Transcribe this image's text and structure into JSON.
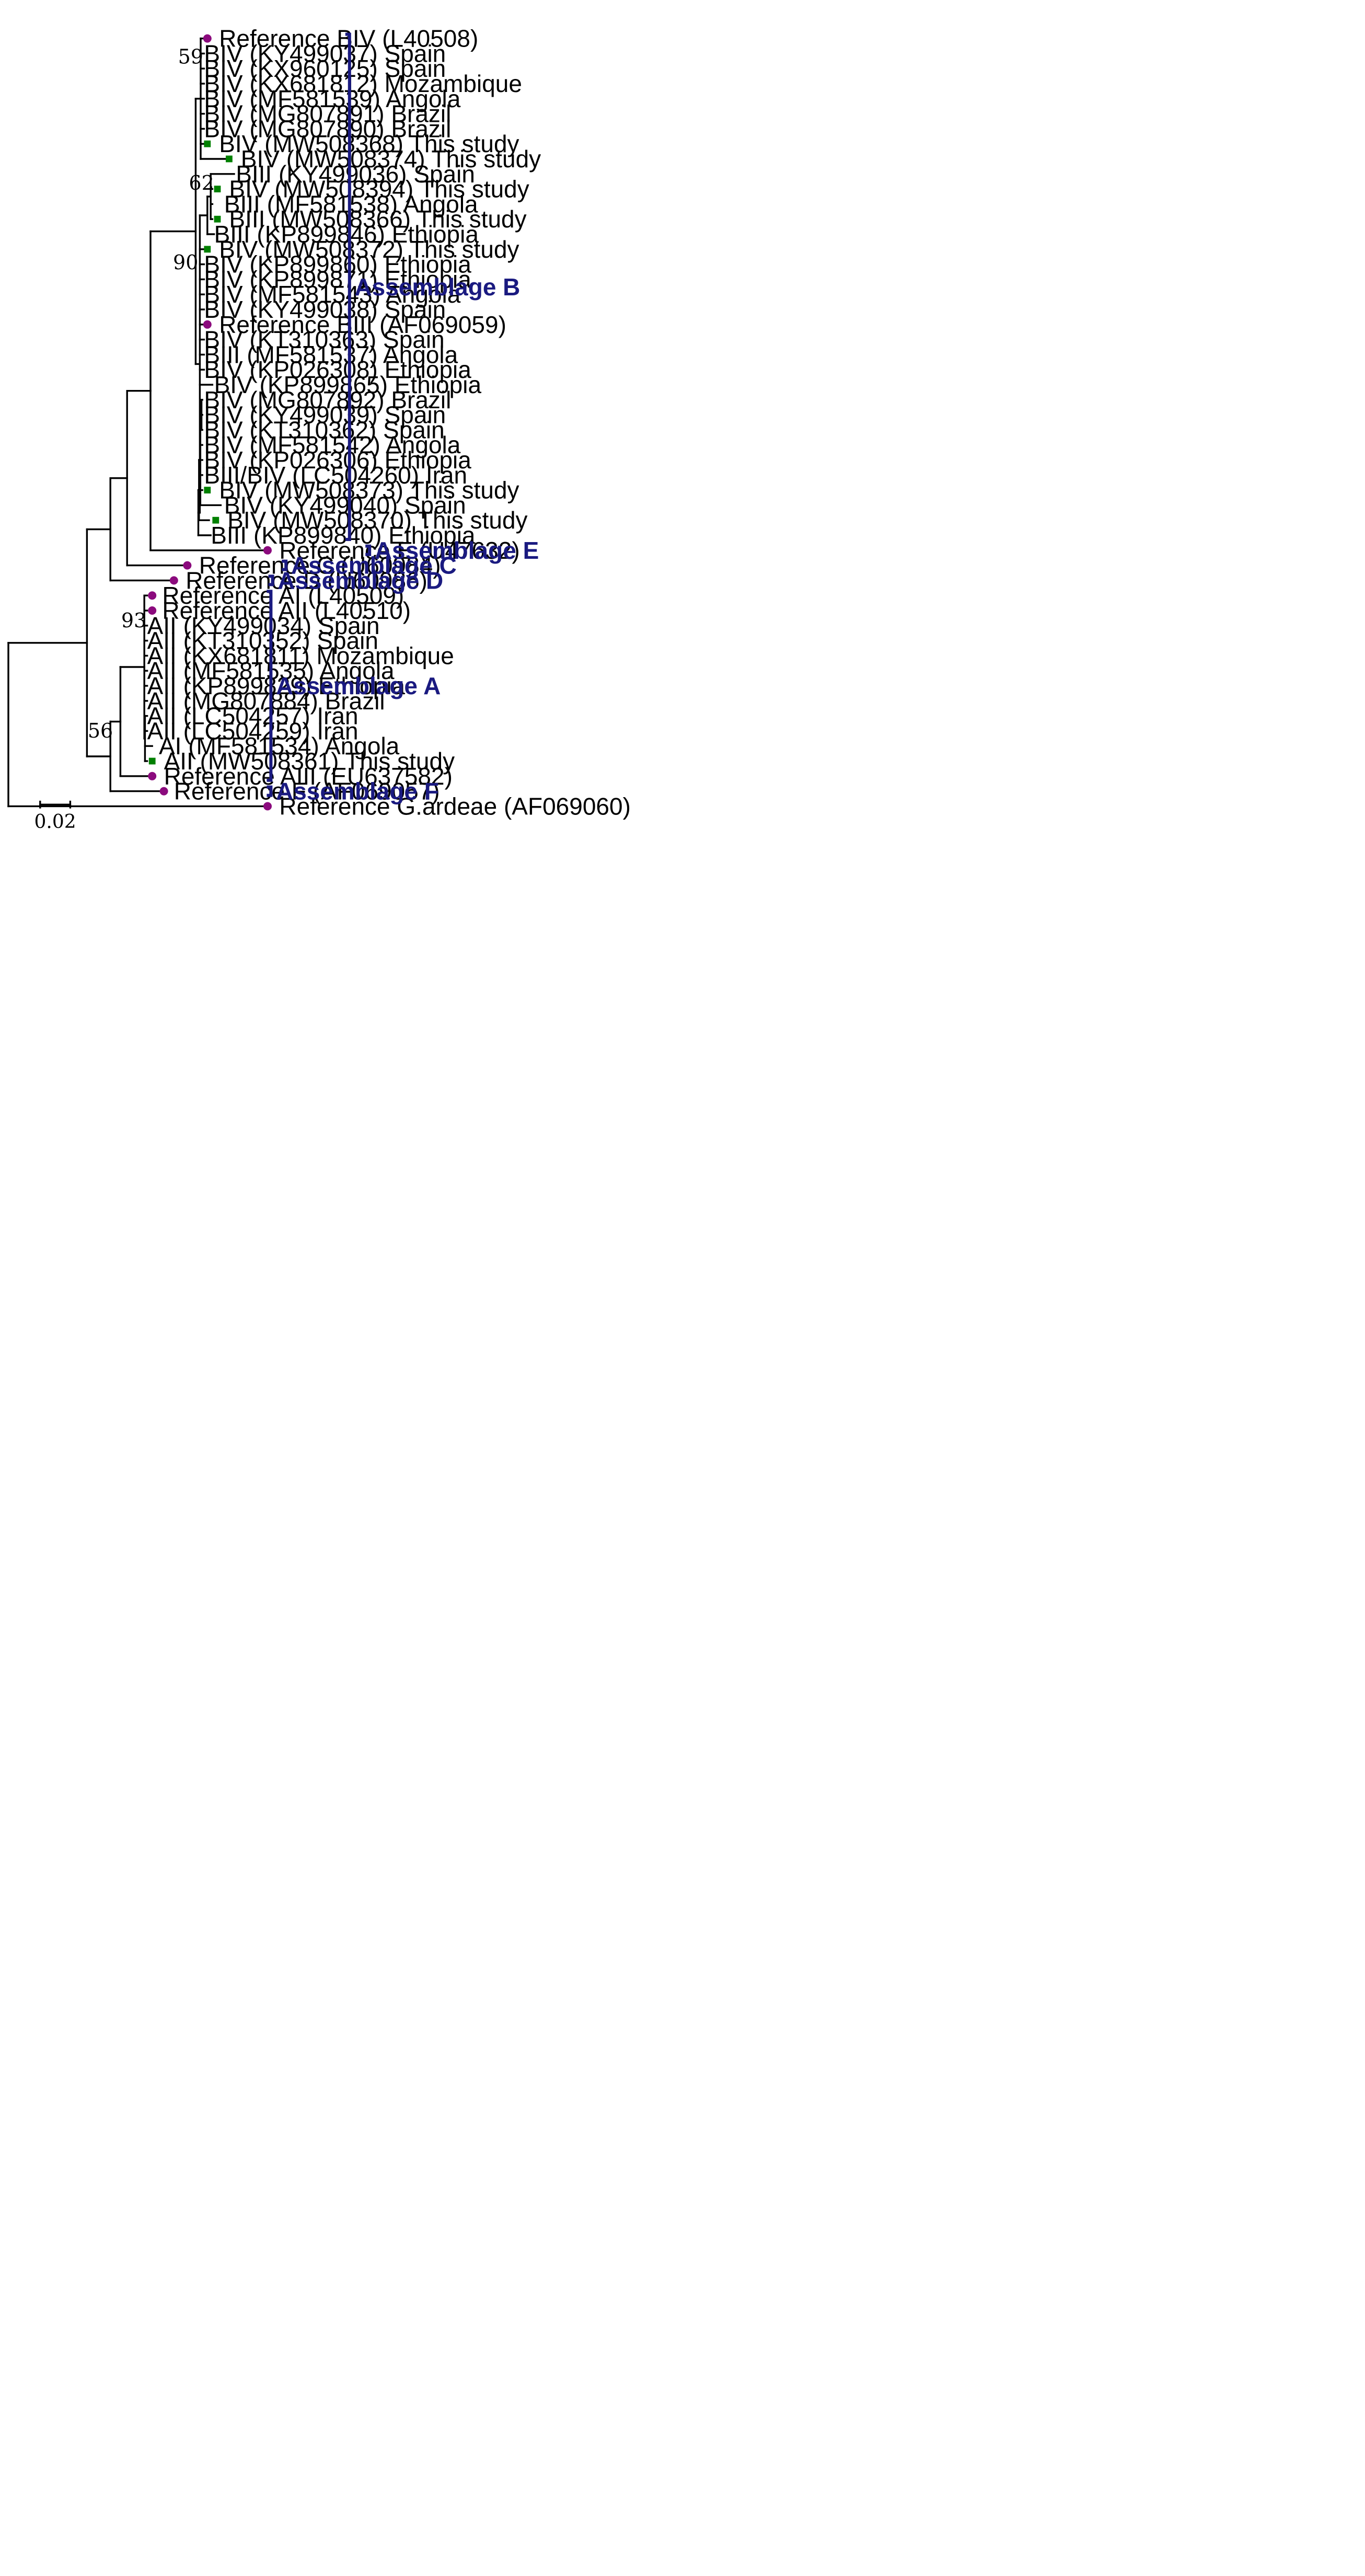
{
  "colors": {
    "reference_marker": "#8b0a7d",
    "study_marker": "#008000",
    "group": "#1a1a80",
    "branch": "#000000"
  },
  "legend_icons": {
    "reference": "purple-circle-icon",
    "this_study": "green-square-icon"
  },
  "leaves": [
    {
      "id": "L1",
      "label": "Reference BIV (L40508)",
      "marker": "circle"
    },
    {
      "id": "L2",
      "label": "BIV (KY499037) Spain",
      "marker": "none"
    },
    {
      "id": "L3",
      "label": "BIV (KX960125) Spain",
      "marker": "none"
    },
    {
      "id": "L4",
      "label": "BIV (KX681812) Mozambique",
      "marker": "none"
    },
    {
      "id": "L5",
      "label": "BIV (MF581539) Angola",
      "marker": "none"
    },
    {
      "id": "L6",
      "label": "BIV (MG807891) Brazil",
      "marker": "none"
    },
    {
      "id": "L7",
      "label": "BIV (MG807890) Brazil",
      "marker": "none"
    },
    {
      "id": "L8",
      "label": "BIV (MW508368) This study",
      "marker": "square"
    },
    {
      "id": "L9",
      "label": "BIV (MW508374) This study",
      "marker": "square"
    },
    {
      "id": "L10",
      "label": "BIII (KY499036) Spain",
      "marker": "none"
    },
    {
      "id": "L11",
      "label": "BIV (MW508394) This study",
      "marker": "square"
    },
    {
      "id": "L12",
      "label": "BIII (MF581538) Angola",
      "marker": "none"
    },
    {
      "id": "L13",
      "label": "BIII (MW508366) This study",
      "marker": "square"
    },
    {
      "id": "L14",
      "label": "BIII (KP899846) Ethiopia",
      "marker": "none"
    },
    {
      "id": "L15",
      "label": "BIV (MW508372) This study",
      "marker": "square"
    },
    {
      "id": "L16",
      "label": "BIV (KP899860) Ethiopia",
      "marker": "none"
    },
    {
      "id": "L17",
      "label": "BIV (KP899871) Ethiopia",
      "marker": "none"
    },
    {
      "id": "L18",
      "label": "BIV (MF581543) Angola",
      "marker": "none"
    },
    {
      "id": "L19",
      "label": "BIV (KY499038) Spain",
      "marker": "none"
    },
    {
      "id": "L20",
      "label": "Reference BIII (AF069059)",
      "marker": "circle"
    },
    {
      "id": "L21",
      "label": "BIV (KT310363) Spain",
      "marker": "none"
    },
    {
      "id": "L22",
      "label": "BIII (MF581537) Angola",
      "marker": "none"
    },
    {
      "id": "L23",
      "label": "BIV (KP026308) Ethiopia",
      "marker": "none"
    },
    {
      "id": "L24",
      "label": "BIV (KP899865) Ethiopia",
      "marker": "none"
    },
    {
      "id": "L25",
      "label": "BIV (MG807892) Brazil",
      "marker": "none"
    },
    {
      "id": "L26",
      "label": "BIV (KY499039) Spain",
      "marker": "none"
    },
    {
      "id": "L27",
      "label": "BIV (KT310362) Spain",
      "marker": "none"
    },
    {
      "id": "L28",
      "label": "BIV (MF581542) Angola",
      "marker": "none"
    },
    {
      "id": "L29",
      "label": "BIV (KP026306) Ethiopia",
      "marker": "none"
    },
    {
      "id": "L30",
      "label": "BIII/BIV (LC504260) Iran",
      "marker": "none"
    },
    {
      "id": "L31",
      "label": "BIV (MW508373) This study",
      "marker": "square"
    },
    {
      "id": "L32",
      "label": "BIV (KY499040) Spain",
      "marker": "none"
    },
    {
      "id": "L33",
      "label": "BIV (MW508370) This study",
      "marker": "square"
    },
    {
      "id": "L34",
      "label": "BIII (KP899840) Ethiopia",
      "marker": "none"
    },
    {
      "id": "L35",
      "label": "Reference E (U47632)",
      "marker": "circle"
    },
    {
      "id": "L36",
      "label": "Reference C (U60984)",
      "marker": "circle"
    },
    {
      "id": "L37",
      "label": "Reference D (U60986)",
      "marker": "circle"
    },
    {
      "id": "L38",
      "label": "Reference AI (L40509)",
      "marker": "circle"
    },
    {
      "id": "L39",
      "label": "Reference AII (L40510)",
      "marker": "circle"
    },
    {
      "id": "L40",
      "label": "AII (KY499034) Spain",
      "marker": "none"
    },
    {
      "id": "L41",
      "label": "AII (KT310352) Spain",
      "marker": "none"
    },
    {
      "id": "L42",
      "label": "AII (KX681811) Mozambique",
      "marker": "none"
    },
    {
      "id": "L43",
      "label": "AII (MF581535) Angola",
      "marker": "none"
    },
    {
      "id": "L44",
      "label": "AII (KP899829) Ethiopia",
      "marker": "none"
    },
    {
      "id": "L45",
      "label": "AII (MG807884) Brazil",
      "marker": "none"
    },
    {
      "id": "L46",
      "label": "AII (LC504257) Iran",
      "marker": "none"
    },
    {
      "id": "L47",
      "label": "AII (LC504259) Iran",
      "marker": "none"
    },
    {
      "id": "L48",
      "label": "AI (MF581534) Angola",
      "marker": "none"
    },
    {
      "id": "L49",
      "label": "AII (MW508361) This study",
      "marker": "square"
    },
    {
      "id": "L50",
      "label": "Reference AIII (EU637582)",
      "marker": "circle"
    },
    {
      "id": "L51",
      "label": "Reference F (AF069057)",
      "marker": "circle"
    },
    {
      "id": "L52",
      "label": "Reference G.ardeae (AF069060)",
      "marker": "circle"
    }
  ],
  "bootstrap": [
    {
      "node": "n59",
      "value": "59"
    },
    {
      "node": "n62",
      "value": "62"
    },
    {
      "node": "n90",
      "value": "90"
    },
    {
      "node": "n93",
      "value": "93"
    },
    {
      "node": "n56",
      "value": "56"
    }
  ],
  "groups": [
    {
      "name": "Assemblage B",
      "from": "L1",
      "to": "L34"
    },
    {
      "name": "Assemblage E",
      "from": "L35",
      "to": "L35"
    },
    {
      "name": "Assemblage C",
      "from": "L36",
      "to": "L36"
    },
    {
      "name": "Assemblage D",
      "from": "L37",
      "to": "L37"
    },
    {
      "name": "Assemblage A",
      "from": "L38",
      "to": "L50"
    },
    {
      "name": "Assemblage F",
      "from": "L51",
      "to": "L51"
    }
  ],
  "scale_bar": {
    "value": "0.02"
  }
}
